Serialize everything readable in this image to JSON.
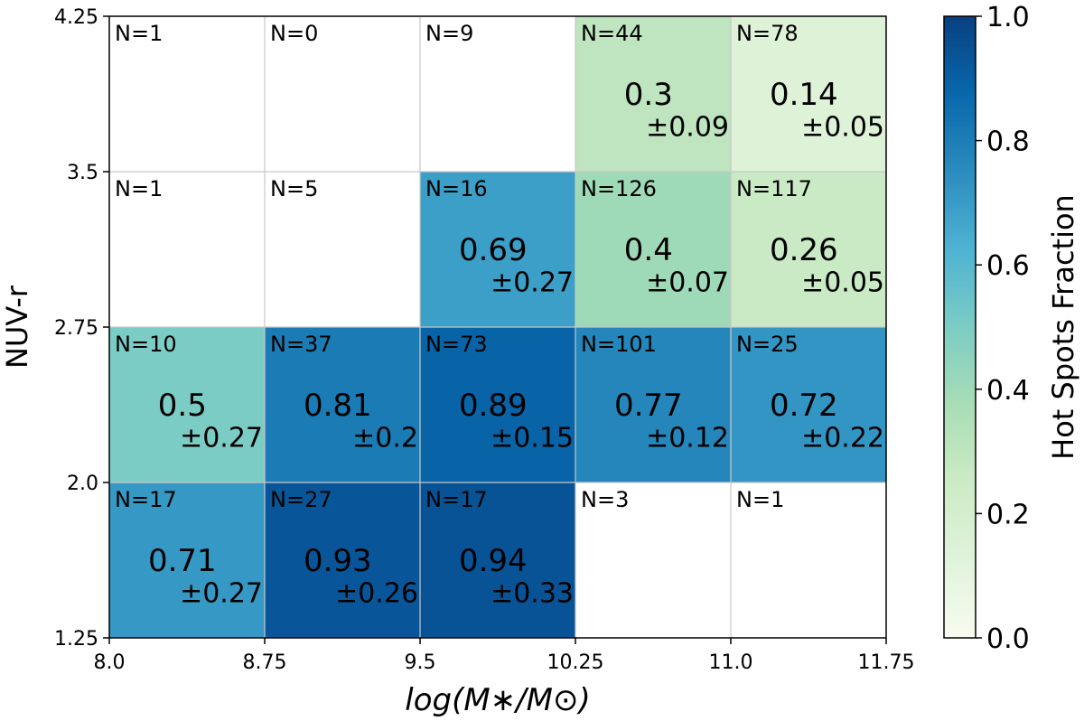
{
  "chart_data": {
    "type": "heatmap",
    "xlabel": "log(M∗/M⊙)",
    "ylabel": "NUV-r",
    "colorbar_label": "Hot Spots Fraction",
    "x_edges": [
      8.0,
      8.75,
      9.5,
      10.25,
      11.0,
      11.75
    ],
    "y_edges": [
      1.25,
      2.0,
      2.75,
      3.5,
      4.25
    ],
    "x_tick_labels": [
      "8.0",
      "8.75",
      "9.5",
      "10.25",
      "11.0",
      "11.75"
    ],
    "y_tick_labels": [
      "1.25",
      "2.0",
      "2.75",
      "3.5",
      "4.25"
    ],
    "colorbar_ticks": [
      "0.0",
      "0.2",
      "0.4",
      "0.6",
      "0.8",
      "1.0"
    ],
    "colorbar_range": [
      0.0,
      1.0
    ],
    "colormap": "GnBu",
    "cells": [
      {
        "col": 0,
        "row": 0,
        "n": "N=17",
        "value": 0.71,
        "value_label": "0.71",
        "err_label": "±0.27"
      },
      {
        "col": 1,
        "row": 0,
        "n": "N=27",
        "value": 0.93,
        "value_label": "0.93",
        "err_label": "±0.26"
      },
      {
        "col": 2,
        "row": 0,
        "n": "N=17",
        "value": 0.94,
        "value_label": "0.94",
        "err_label": "±0.33"
      },
      {
        "col": 3,
        "row": 0,
        "n": "N=3",
        "value": null,
        "value_label": "",
        "err_label": ""
      },
      {
        "col": 4,
        "row": 0,
        "n": "N=1",
        "value": null,
        "value_label": "",
        "err_label": ""
      },
      {
        "col": 0,
        "row": 1,
        "n": "N=10",
        "value": 0.5,
        "value_label": "0.5",
        "err_label": "±0.27"
      },
      {
        "col": 1,
        "row": 1,
        "n": "N=37",
        "value": 0.81,
        "value_label": "0.81",
        "err_label": "±0.2"
      },
      {
        "col": 2,
        "row": 1,
        "n": "N=73",
        "value": 0.89,
        "value_label": "0.89",
        "err_label": "±0.15"
      },
      {
        "col": 3,
        "row": 1,
        "n": "N=101",
        "value": 0.77,
        "value_label": "0.77",
        "err_label": "±0.12"
      },
      {
        "col": 4,
        "row": 1,
        "n": "N=25",
        "value": 0.72,
        "value_label": "0.72",
        "err_label": "±0.22"
      },
      {
        "col": 0,
        "row": 2,
        "n": "N=1",
        "value": null,
        "value_label": "",
        "err_label": ""
      },
      {
        "col": 1,
        "row": 2,
        "n": "N=5",
        "value": null,
        "value_label": "",
        "err_label": ""
      },
      {
        "col": 2,
        "row": 2,
        "n": "N=16",
        "value": 0.69,
        "value_label": "0.69",
        "err_label": "±0.27"
      },
      {
        "col": 3,
        "row": 2,
        "n": "N=126",
        "value": 0.4,
        "value_label": "0.4",
        "err_label": "±0.07"
      },
      {
        "col": 4,
        "row": 2,
        "n": "N=117",
        "value": 0.26,
        "value_label": "0.26",
        "err_label": "±0.05"
      },
      {
        "col": 0,
        "row": 3,
        "n": "N=1",
        "value": null,
        "value_label": "",
        "err_label": ""
      },
      {
        "col": 1,
        "row": 3,
        "n": "N=0",
        "value": null,
        "value_label": "",
        "err_label": ""
      },
      {
        "col": 2,
        "row": 3,
        "n": "N=9",
        "value": null,
        "value_label": "",
        "err_label": ""
      },
      {
        "col": 3,
        "row": 3,
        "n": "N=44",
        "value": 0.3,
        "value_label": "0.3",
        "err_label": "±0.09"
      },
      {
        "col": 4,
        "row": 3,
        "n": "N=78",
        "value": 0.14,
        "value_label": "0.14",
        "err_label": "±0.05"
      }
    ]
  }
}
